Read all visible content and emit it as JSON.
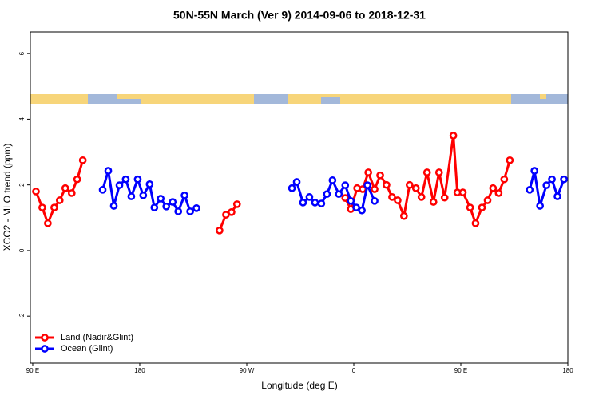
{
  "chart_data": {
    "type": "line",
    "title": "50N-55N March (Ver 9)   2014-09-06 to 2018-12-31",
    "x_label": "Longitude (deg E)",
    "y_label": "XCO2 - MLO trend (ppm)",
    "xlim": [
      88,
      540
    ],
    "ylim": [
      -3.43,
      6.66
    ],
    "xticks": [
      {
        "value": 90,
        "label": "90 E"
      },
      {
        "value": 180,
        "label": "180"
      },
      {
        "value": 270,
        "label": "90 W"
      },
      {
        "value": 360,
        "label": "0"
      },
      {
        "value": 450,
        "label": "90 E"
      },
      {
        "value": 540,
        "label": "180"
      }
    ],
    "yticks": [
      -2,
      0,
      2,
      4,
      6
    ],
    "legend": "bottom-left",
    "series": [
      {
        "name": "Land (Nadir&Glint)",
        "color": "#ff0000",
        "x": [
          92.7,
          98.0,
          102.7,
          108.1,
          112.7,
          117.4,
          122.8,
          127.4,
          132.1,
          null,
          247.1,
          252.5,
          257.2,
          261.8,
          null,
          352.8,
          357.5,
          362.8,
          367.5,
          372.2,
          377.5,
          382.2,
          387.5,
          392.2,
          396.9,
          402.2,
          406.9,
          412.2,
          416.9,
          421.6,
          427.0,
          431.7,
          436.4,
          443.7,
          447.1,
          451.7,
          457.8,
          462.4,
          467.8,
          472.5,
          477.1,
          481.8,
          486.5,
          491.2
        ],
        "values": [
          1.8,
          1.31,
          0.83,
          1.31,
          1.53,
          1.9,
          1.75,
          2.17,
          2.75,
          null,
          0.61,
          1.09,
          1.17,
          1.41,
          null,
          1.6,
          1.26,
          1.9,
          1.87,
          2.38,
          1.87,
          2.29,
          2.0,
          1.63,
          1.53,
          1.05,
          2.0,
          1.9,
          1.63,
          2.38,
          1.48,
          2.38,
          1.61,
          3.5,
          1.77,
          1.77,
          1.31,
          0.83,
          1.31,
          1.53,
          1.9,
          1.75,
          2.17,
          2.75
        ]
      },
      {
        "name": "Ocean (Glint)",
        "color": "#0000ff",
        "x": [
          148.8,
          153.5,
          158.2,
          162.9,
          168.2,
          172.9,
          178.3,
          182.9,
          188.3,
          192.3,
          197.6,
          202.3,
          207.7,
          212.4,
          217.7,
          222.4,
          227.7,
          null,
          308.0,
          312.0,
          317.3,
          322.7,
          327.4,
          332.7,
          337.4,
          342.1,
          347.4,
          352.8,
          357.5,
          362.1,
          366.8,
          371.5,
          377.5,
          null,
          507.9,
          511.9,
          516.6,
          522.0,
          526.6,
          531.3,
          536.7
        ],
        "values": [
          1.85,
          2.43,
          1.36,
          1.99,
          2.17,
          1.65,
          2.17,
          1.68,
          2.02,
          1.31,
          1.58,
          1.34,
          1.48,
          1.19,
          1.68,
          1.19,
          1.29,
          null,
          1.9,
          2.09,
          1.46,
          1.63,
          1.46,
          1.43,
          1.72,
          2.14,
          1.72,
          1.99,
          1.51,
          1.31,
          1.22,
          1.99,
          1.51,
          null,
          1.85,
          2.43,
          1.36,
          1.99,
          2.17,
          1.65,
          2.17
        ]
      }
    ]
  }
}
